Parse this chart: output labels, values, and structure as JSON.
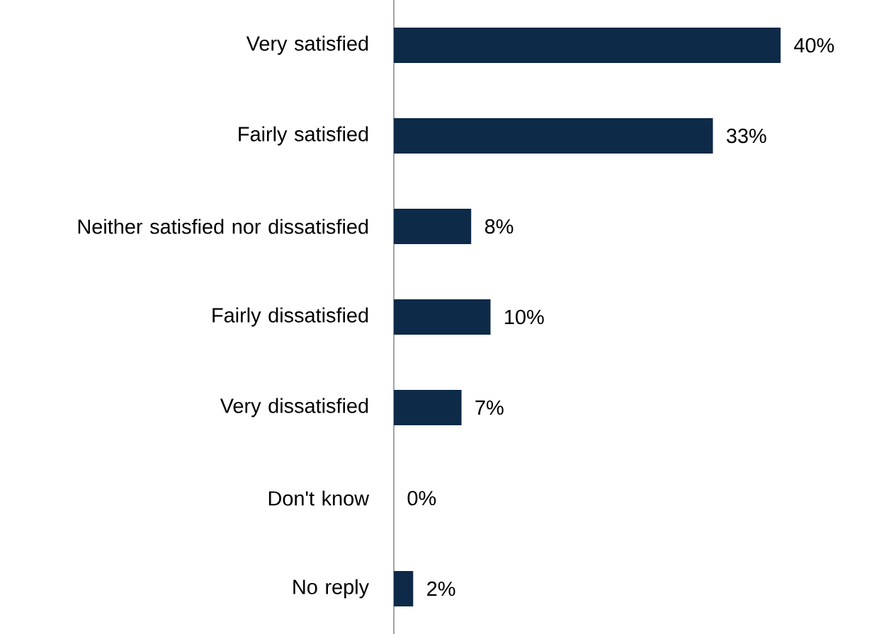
{
  "chart_data": {
    "type": "bar",
    "orientation": "horizontal",
    "relative": false,
    "categories": [
      "Very satisfied",
      "Fairly satisfied",
      "Neither satisfied nor dissatisfied",
      "Fairly dissatisfied",
      "Very dissatisfied",
      "Don't know",
      "No reply"
    ],
    "values": [
      40,
      33,
      8,
      10,
      7,
      0,
      2
    ],
    "value_labels": [
      "40%",
      "33%",
      "8%",
      "10%",
      "7%",
      "0%",
      "2%"
    ],
    "color": "#0d2a48"
  }
}
